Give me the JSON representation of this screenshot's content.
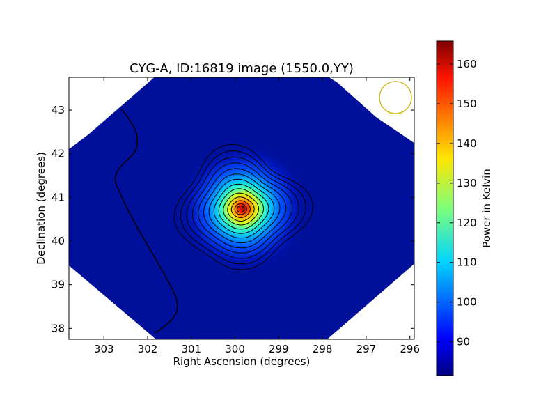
{
  "chart_data": {
    "type": "heatmap",
    "title": "CYG-A, ID:16819 image (1550.0,YY)",
    "xlabel": "Right Ascension (degrees)",
    "ylabel": "Declination (degrees)",
    "xlim": [
      303.8,
      295.9
    ],
    "ylim": [
      37.75,
      43.75
    ],
    "x_ticks": [
      303,
      302,
      301,
      300,
      299,
      298,
      297,
      296
    ],
    "y_ticks": [
      38,
      39,
      40,
      41,
      42,
      43
    ],
    "colorbar": {
      "label": "Power in Kelvin",
      "range": [
        81.5,
        165.8
      ],
      "ticks": [
        90,
        100,
        110,
        120,
        130,
        140,
        150,
        160
      ],
      "colormap": "jet"
    },
    "source": {
      "ra": 299.87,
      "dec": 40.73,
      "peak": 165.8
    },
    "background_level": 83,
    "coverage_region": "diamond",
    "contours": {
      "count": 14,
      "color": "#000000"
    },
    "beam_marker": {
      "ra": 296.35,
      "dec": 43.3,
      "color": "#c8b400"
    }
  }
}
